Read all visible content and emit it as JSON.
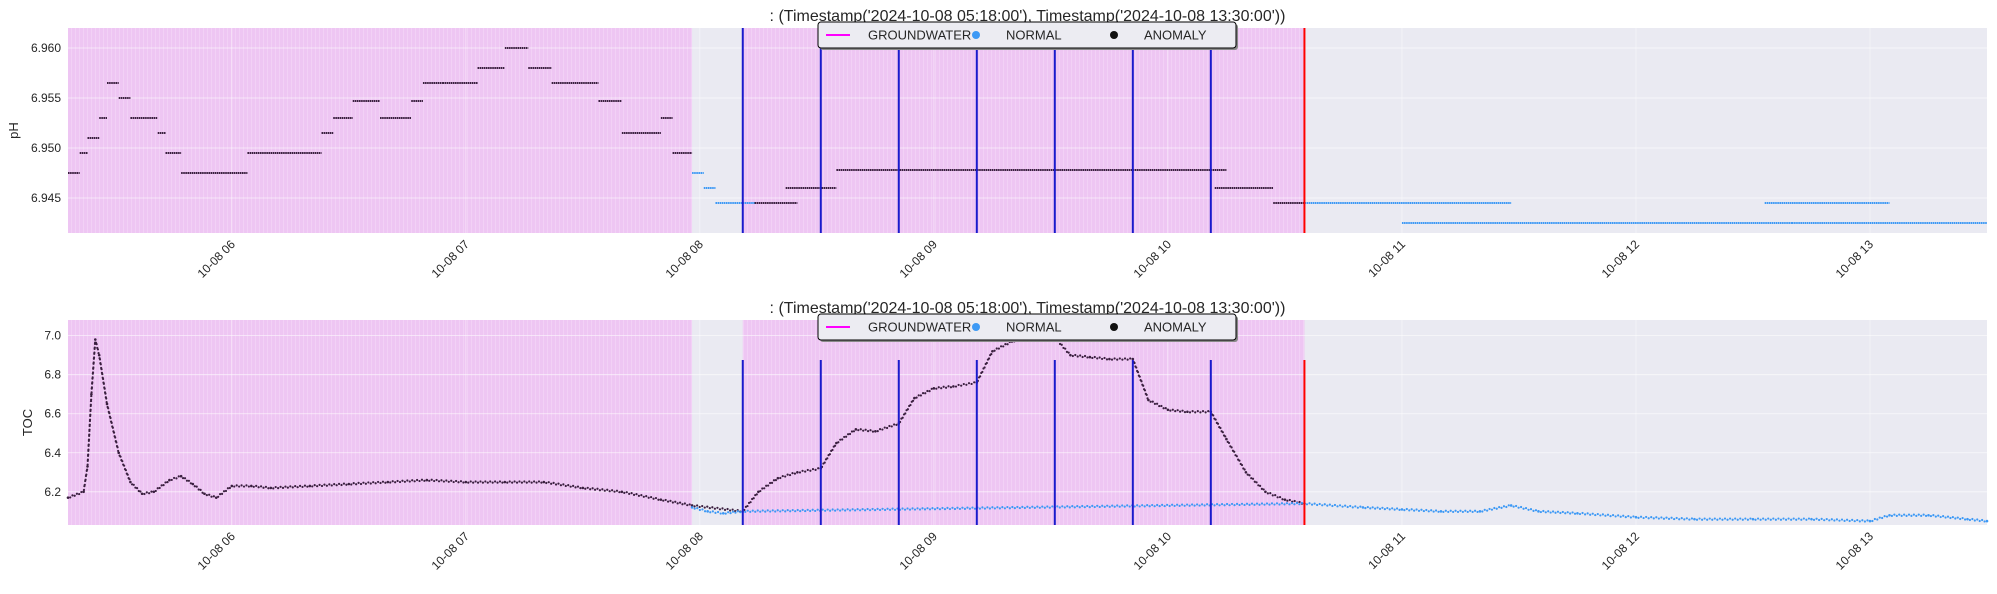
{
  "colors": {
    "plot_bg": "#eaeaf2",
    "groundwater_span": "#eec6f3",
    "groundwater_line": "#ff00ff",
    "normal": "#3d99f5",
    "anomaly": "#3a1f3f",
    "split_line": "#1a1acc",
    "end_line": "#ff0000"
  },
  "chart_data": [
    {
      "type": "scatter",
      "title": ": (Timestamp('2024-10-08 05:18:00'), Timestamp('2024-10-08 13:30:00'))",
      "ylabel": "pH",
      "xlim": [
        "2024-10-08 05:18",
        "2024-10-08 13:30"
      ],
      "ylim": [
        6.9415,
        6.962
      ],
      "yticks": [
        6.945,
        6.95,
        6.955,
        6.96
      ],
      "ytick_labels": [
        "6.945",
        "6.950",
        "6.955",
        "6.960"
      ],
      "xticks": [
        "2024-10-08 06:00",
        "2024-10-08 07:00",
        "2024-10-08 08:00",
        "2024-10-08 09:00",
        "2024-10-08 10:00",
        "2024-10-08 11:00",
        "2024-10-08 12:00",
        "2024-10-08 13:00"
      ],
      "xtick_labels": [
        "10-08 06",
        "10-08 07",
        "10-08 08",
        "10-08 09",
        "10-08 10",
        "10-08 11",
        "10-08 12",
        "10-08 13"
      ],
      "legend": {
        "placement": "top-center",
        "entries": [
          "GROUNDWATER",
          "NORMAL",
          "ANOMALY"
        ]
      },
      "groundwater_spans": [
        [
          "2024-10-08 05:18",
          "2024-10-08 07:58"
        ],
        [
          "2024-10-08 08:11",
          "2024-10-08 10:35"
        ]
      ],
      "split_lines": [
        "2024-10-08 08:11",
        "2024-10-08 08:31",
        "2024-10-08 08:51",
        "2024-10-08 09:11",
        "2024-10-08 09:31",
        "2024-10-08 09:51",
        "2024-10-08 10:11"
      ],
      "end_line": "2024-10-08 10:35",
      "series": [
        {
          "name": "ANOMALY",
          "segments": [
            [
              "05:18",
              "05:21",
              6.9475
            ],
            [
              "05:21",
              "05:23",
              6.9495
            ],
            [
              "05:23",
              "05:26",
              6.951
            ],
            [
              "05:26",
              "05:28",
              6.953
            ],
            [
              "05:28",
              "05:31",
              6.9565
            ],
            [
              "05:31",
              "05:34",
              6.955
            ],
            [
              "05:34",
              "05:41",
              6.953
            ],
            [
              "05:41",
              "05:43",
              6.9515
            ],
            [
              "05:43",
              "05:47",
              6.9495
            ],
            [
              "05:47",
              "06:04",
              6.9475
            ],
            [
              "06:04",
              "06:23",
              6.9495
            ],
            [
              "06:23",
              "06:26",
              6.9515
            ],
            [
              "06:26",
              "06:31",
              6.953
            ],
            [
              "06:31",
              "06:38",
              6.9547
            ],
            [
              "06:38",
              "06:46",
              6.953
            ],
            [
              "06:46",
              "06:49",
              6.9547
            ],
            [
              "06:49",
              "06:54",
              6.9565
            ],
            [
              "06:54",
              "07:03",
              6.9565
            ],
            [
              "07:03",
              "07:10",
              6.958
            ],
            [
              "07:10",
              "07:16",
              6.96
            ],
            [
              "07:16",
              "07:22",
              6.958
            ],
            [
              "07:22",
              "07:34",
              6.9565
            ],
            [
              "07:34",
              "07:40",
              6.9547
            ],
            [
              "07:40",
              "07:50",
              6.9515
            ],
            [
              "07:50",
              "07:53",
              6.953
            ],
            [
              "07:53",
              "07:58",
              6.9495
            ],
            [
              "08:14",
              "08:25",
              6.9445
            ],
            [
              "08:22",
              "08:35",
              6.946
            ],
            [
              "08:35",
              "09:30",
              6.9478
            ],
            [
              "09:30",
              "10:15",
              6.9478
            ],
            [
              "10:12",
              "10:27",
              6.946
            ],
            [
              "10:27",
              "10:35",
              6.9445
            ]
          ]
        },
        {
          "name": "NORMAL",
          "segments": [
            [
              "07:58",
              "08:01",
              6.9475
            ],
            [
              "08:01",
              "08:04",
              6.946
            ],
            [
              "08:04",
              "08:14",
              6.9445
            ],
            [
              "10:35",
              "11:28",
              6.9445
            ],
            [
              "11:00",
              "11:35",
              6.9425
            ],
            [
              "11:35",
              "12:40",
              6.9425
            ],
            [
              "12:33",
              "13:05",
              6.9445
            ],
            [
              "12:40",
              "13:30",
              6.9425
            ]
          ]
        }
      ]
    },
    {
      "type": "scatter",
      "title": ": (Timestamp('2024-10-08 05:18:00'), Timestamp('2024-10-08 13:30:00'))",
      "ylabel": "TOC",
      "xlim": [
        "2024-10-08 05:18",
        "2024-10-08 13:30"
      ],
      "ylim": [
        6.03,
        7.08
      ],
      "yticks": [
        6.2,
        6.4,
        6.6,
        6.8,
        7.0
      ],
      "ytick_labels": [
        "6.2",
        "6.4",
        "6.6",
        "6.8",
        "7.0"
      ],
      "xticks": [
        "2024-10-08 06:00",
        "2024-10-08 07:00",
        "2024-10-08 08:00",
        "2024-10-08 09:00",
        "2024-10-08 10:00",
        "2024-10-08 11:00",
        "2024-10-08 12:00",
        "2024-10-08 13:00"
      ],
      "xtick_labels": [
        "10-08 06",
        "10-08 07",
        "10-08 08",
        "10-08 09",
        "10-08 10",
        "10-08 11",
        "10-08 12",
        "10-08 13"
      ],
      "legend": {
        "placement": "top-center",
        "entries": [
          "GROUNDWATER",
          "NORMAL",
          "ANOMALY"
        ]
      },
      "groundwater_spans": [
        [
          "2024-10-08 05:18",
          "2024-10-08 07:58"
        ],
        [
          "2024-10-08 08:11",
          "2024-10-08 10:35"
        ]
      ],
      "split_lines": [
        "2024-10-08 08:11",
        "2024-10-08 08:31",
        "2024-10-08 08:51",
        "2024-10-08 09:11",
        "2024-10-08 09:31",
        "2024-10-08 09:51",
        "2024-10-08 10:11"
      ],
      "end_line": "2024-10-08 10:35",
      "series": [
        {
          "name": "ANOMALY",
          "points": [
            [
              "05:18",
              6.17
            ],
            [
              "05:22",
              6.2
            ],
            [
              "05:23",
              6.33
            ],
            [
              "05:24",
              6.7
            ],
            [
              "05:25",
              6.98
            ],
            [
              "05:26",
              6.9
            ],
            [
              "05:28",
              6.65
            ],
            [
              "05:31",
              6.4
            ],
            [
              "05:34",
              6.25
            ],
            [
              "05:37",
              6.19
            ],
            [
              "05:40",
              6.2
            ],
            [
              "05:44",
              6.26
            ],
            [
              "05:47",
              6.28
            ],
            [
              "05:50",
              6.24
            ],
            [
              "05:53",
              6.19
            ],
            [
              "05:56",
              6.17
            ],
            [
              "06:00",
              6.23
            ],
            [
              "06:05",
              6.23
            ],
            [
              "06:10",
              6.22
            ],
            [
              "06:20",
              6.23
            ],
            [
              "06:30",
              6.24
            ],
            [
              "06:40",
              6.25
            ],
            [
              "06:50",
              6.26
            ],
            [
              "07:00",
              6.25
            ],
            [
              "07:10",
              6.25
            ],
            [
              "07:20",
              6.25
            ],
            [
              "07:30",
              6.22
            ],
            [
              "07:40",
              6.2
            ],
            [
              "07:50",
              6.16
            ],
            [
              "07:58",
              6.13
            ],
            [
              "08:11",
              6.1
            ],
            [
              "08:15",
              6.2
            ],
            [
              "08:20",
              6.27
            ],
            [
              "08:25",
              6.3
            ],
            [
              "08:31",
              6.32
            ],
            [
              "08:35",
              6.45
            ],
            [
              "08:40",
              6.52
            ],
            [
              "08:45",
              6.51
            ],
            [
              "08:51",
              6.55
            ],
            [
              "08:55",
              6.68
            ],
            [
              "09:00",
              6.73
            ],
            [
              "09:05",
              6.74
            ],
            [
              "09:11",
              6.76
            ],
            [
              "09:15",
              6.92
            ],
            [
              "09:20",
              6.97
            ],
            [
              "09:25",
              7.0
            ],
            [
              "09:31",
              6.99
            ],
            [
              "09:35",
              6.9
            ],
            [
              "09:40",
              6.89
            ],
            [
              "09:45",
              6.88
            ],
            [
              "09:51",
              6.88
            ],
            [
              "09:55",
              6.67
            ],
            [
              "10:00",
              6.62
            ],
            [
              "10:05",
              6.61
            ],
            [
              "10:11",
              6.61
            ],
            [
              "10:15",
              6.47
            ],
            [
              "10:20",
              6.3
            ],
            [
              "10:25",
              6.2
            ],
            [
              "10:30",
              6.16
            ],
            [
              "10:35",
              6.14
            ]
          ]
        },
        {
          "name": "NORMAL",
          "points": [
            [
              "07:58",
              6.12
            ],
            [
              "08:02",
              6.1
            ],
            [
              "08:06",
              6.09
            ],
            [
              "08:11",
              6.1
            ],
            [
              "10:35",
              6.14
            ],
            [
              "10:50",
              6.12
            ],
            [
              "11:00",
              6.11
            ],
            [
              "11:10",
              6.1
            ],
            [
              "11:20",
              6.1
            ],
            [
              "11:28",
              6.13
            ],
            [
              "11:35",
              6.1
            ],
            [
              "11:45",
              6.09
            ],
            [
              "12:00",
              6.07
            ],
            [
              "12:15",
              6.06
            ],
            [
              "12:30",
              6.06
            ],
            [
              "12:45",
              6.06
            ],
            [
              "13:00",
              6.05
            ],
            [
              "13:05",
              6.08
            ],
            [
              "13:15",
              6.08
            ],
            [
              "13:25",
              6.06
            ],
            [
              "13:30",
              6.05
            ]
          ]
        }
      ]
    }
  ]
}
